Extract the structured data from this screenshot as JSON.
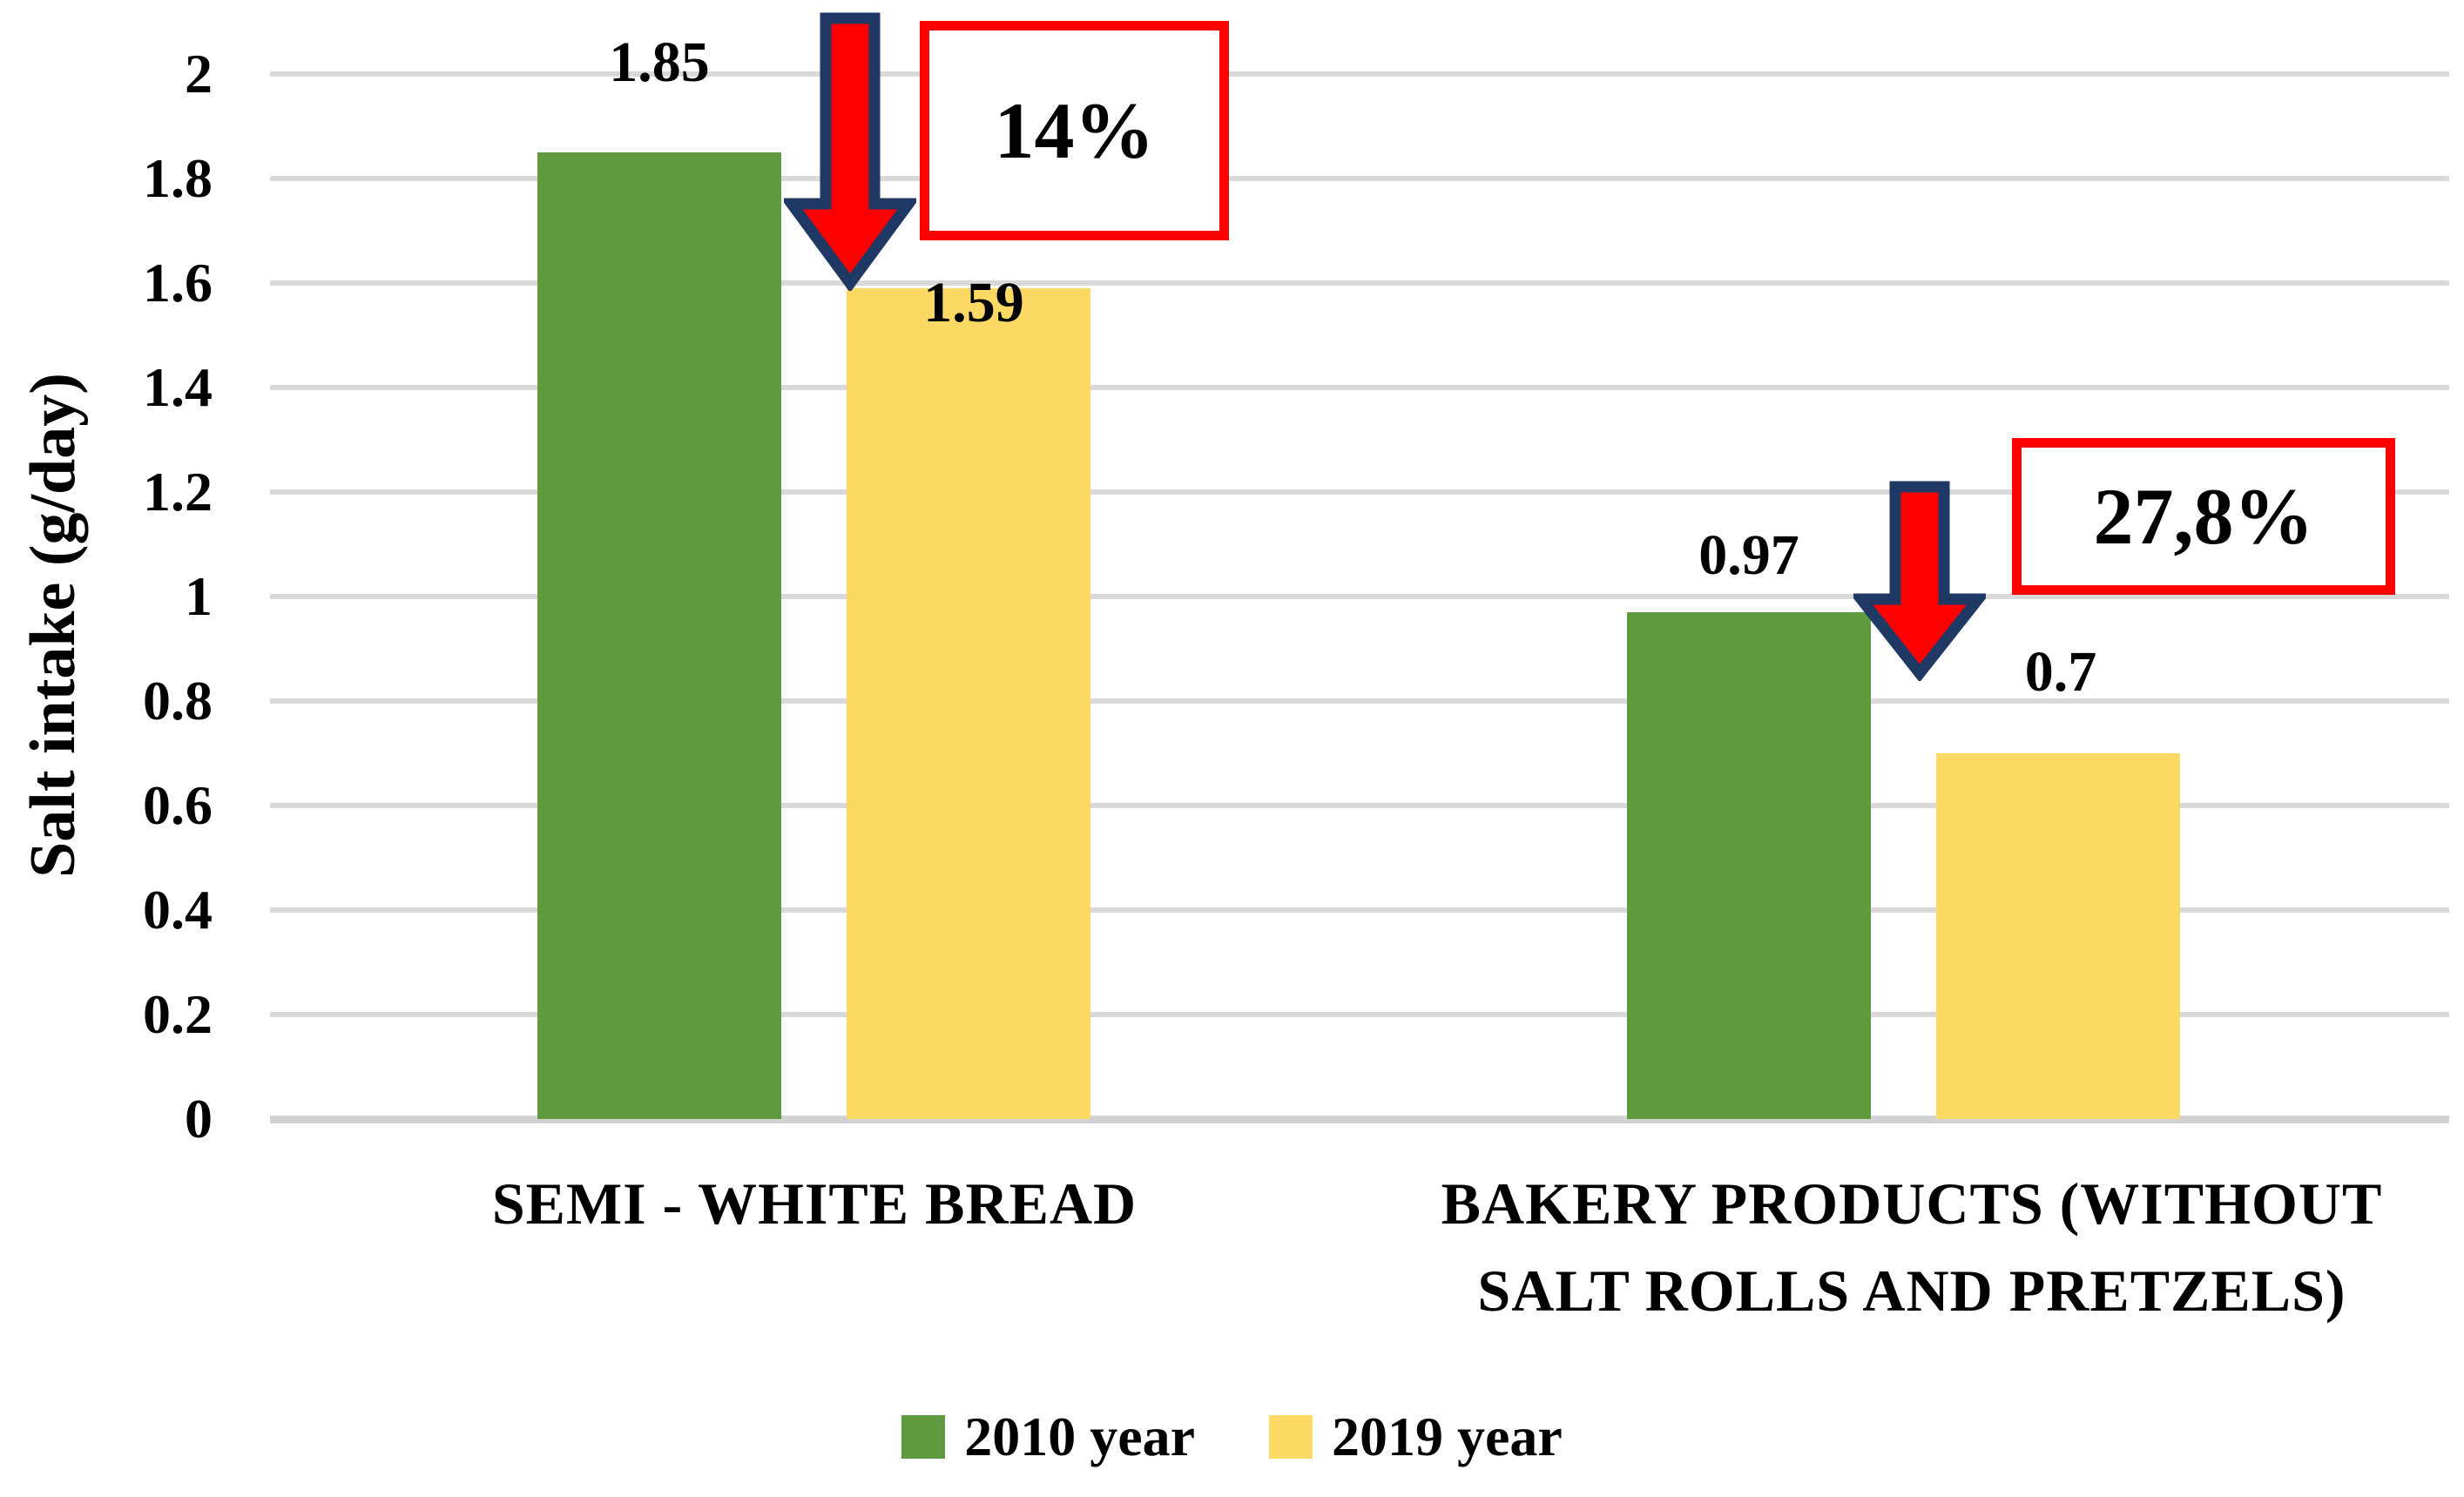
{
  "chart_data": {
    "type": "bar",
    "ylabel": "Salt intake (g/day)",
    "ylim": [
      0,
      2
    ],
    "ytick_step": 0.2,
    "yticks": [
      "2",
      "1.8",
      "1.6",
      "1.4",
      "1.2",
      "1",
      "0.8",
      "0.6",
      "0.4",
      "0.2",
      "0"
    ],
    "grid": true,
    "legend_position": "bottom",
    "categories": [
      "SEMI - WHITE BREAD",
      "BAKERY PRODUCTS (WITHOUT SALT ROLLS AND PRETZELS)"
    ],
    "categories_display": [
      [
        "SEMI - WHITE BREAD"
      ],
      [
        "BAKERY PRODUCTS (WITHOUT",
        "SALT ROLLS AND PRETZELS)"
      ]
    ],
    "series": [
      {
        "name": "2010 year",
        "color": "#5F9A40",
        "values": [
          1.85,
          0.97
        ],
        "value_labels": [
          "1.85",
          "0.97"
        ]
      },
      {
        "name": "2019 year",
        "color": "#FCD865",
        "values": [
          1.59,
          0.7
        ],
        "value_labels": [
          "1.59",
          "0.7"
        ]
      }
    ],
    "annotations": [
      {
        "text": "14%",
        "icon": "down-arrow",
        "group": "SEMI - WHITE BREAD"
      },
      {
        "text": "27,8%",
        "icon": "down-arrow",
        "group": "BAKERY PRODUCTS (WITHOUT SALT ROLLS AND PRETZELS)"
      }
    ]
  },
  "colors": {
    "series_2010": "#5F9A40",
    "series_2019": "#FCD865",
    "gridline": "#D9D9D9",
    "baseline": "#D2D2D2",
    "annotation_red": "#FE0000",
    "arrow_fill_red": "#FE0000",
    "arrow_outline_navy": "#1F3864",
    "text": "#000000",
    "background": "#FFFFFF"
  }
}
